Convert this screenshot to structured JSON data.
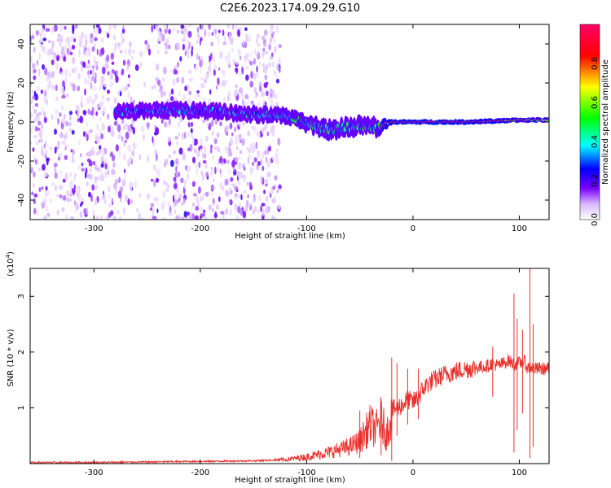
{
  "title": "C2E6.2023.174.09.29.G10",
  "chart_data": [
    {
      "type": "heatmap",
      "xlabel": "Height of straight line (km)",
      "ylabel": "Frequency (Hz)",
      "xlim": [
        -360,
        128
      ],
      "ylim": [
        -50,
        50
      ],
      "x_ticks": [
        -300,
        -200,
        -100,
        0,
        100
      ],
      "y_ticks": [
        -40,
        -20,
        0,
        20,
        40
      ],
      "colorbar": {
        "label": "Normalized spectral amplitude",
        "range": [
          0,
          1
        ],
        "ticks": [
          "0.0",
          "0.2",
          "0.4",
          "0.6",
          "0.8"
        ],
        "colormap": [
          "#ffffff",
          "#7a00ff",
          "#0000ff",
          "#00ffff",
          "#00ff00",
          "#ffff00",
          "#ff0000",
          "#ff00aa"
        ]
      },
      "ridge": [
        {
          "x": -280,
          "y": 5,
          "spread": 4,
          "amp": 0.3
        },
        {
          "x": -240,
          "y": 6,
          "spread": 4,
          "amp": 0.3
        },
        {
          "x": -200,
          "y": 6,
          "spread": 4,
          "amp": 0.3
        },
        {
          "x": -150,
          "y": 4,
          "spread": 4,
          "amp": 0.35
        },
        {
          "x": -120,
          "y": 3,
          "spread": 4,
          "amp": 0.4
        },
        {
          "x": -80,
          "y": -4,
          "spread": 5,
          "amp": 0.4
        },
        {
          "x": -50,
          "y": -2,
          "spread": 5,
          "amp": 0.4
        },
        {
          "x": -35,
          "y": -3,
          "spread": 5,
          "amp": 0.35
        },
        {
          "x": -20,
          "y": 0,
          "spread": 1,
          "amp": 1.0
        },
        {
          "x": 50,
          "y": 0,
          "spread": 1,
          "amp": 1.0
        },
        {
          "x": 100,
          "y": 1,
          "spread": 1,
          "amp": 0.7
        },
        {
          "x": 128,
          "y": 1,
          "spread": 1,
          "amp": 0.6
        }
      ]
    },
    {
      "type": "line",
      "xlabel": "Height of straight line (km)",
      "ylabel": "SNR (10 * v/v)",
      "yscale_label": "(x10",
      "yscale_exp": "4",
      "yscale_close": ")",
      "xlim": [
        -360,
        128
      ],
      "ylim": [
        0,
        3.5
      ],
      "x_ticks": [
        -300,
        -200,
        -100,
        0,
        100
      ],
      "y_ticks": [
        1,
        2,
        3
      ],
      "color": "#e8312e",
      "series": [
        {
          "x": [
            -360,
            -300,
            -250,
            -200,
            -150,
            -120,
            -100,
            -80,
            -60,
            -50,
            -45,
            -40,
            -35,
            -30,
            -25,
            -20,
            -15,
            -10,
            -5,
            0,
            5,
            10,
            15,
            20,
            30,
            40,
            50,
            60,
            70,
            75,
            80,
            85,
            90,
            95,
            100,
            105,
            108,
            110,
            112,
            115,
            120,
            128
          ],
          "y": [
            0.02,
            0.02,
            0.03,
            0.04,
            0.05,
            0.07,
            0.12,
            0.2,
            0.3,
            0.4,
            0.55,
            0.7,
            0.6,
            0.8,
            0.5,
            0.95,
            1.0,
            1.05,
            1.15,
            1.1,
            1.2,
            1.35,
            1.45,
            1.5,
            1.6,
            1.65,
            1.7,
            1.72,
            1.75,
            1.8,
            1.75,
            1.8,
            1.85,
            1.78,
            1.8,
            1.82,
            1.7,
            1.75,
            1.72,
            1.7,
            1.7,
            1.7
          ]
        }
      ],
      "spikes": [
        {
          "x": -50,
          "lo": 0.1,
          "hi": 0.95
        },
        {
          "x": -30,
          "lo": 0.15,
          "hi": 1.1
        },
        {
          "x": -20,
          "lo": 0.05,
          "hi": 1.9
        },
        {
          "x": -15,
          "lo": 0.5,
          "hi": 1.8
        },
        {
          "x": -5,
          "lo": 0.7,
          "hi": 1.7
        },
        {
          "x": 5,
          "lo": 0.8,
          "hi": 1.7
        },
        {
          "x": 75,
          "lo": 1.2,
          "hi": 2.1
        },
        {
          "x": 95,
          "lo": 0.2,
          "hi": 3.05
        },
        {
          "x": 98,
          "lo": 0.6,
          "hi": 2.6
        },
        {
          "x": 103,
          "lo": 0.9,
          "hi": 2.4
        },
        {
          "x": 110,
          "lo": 0.1,
          "hi": 3.5
        },
        {
          "x": 113,
          "lo": 0.3,
          "hi": 2.5
        }
      ]
    }
  ]
}
